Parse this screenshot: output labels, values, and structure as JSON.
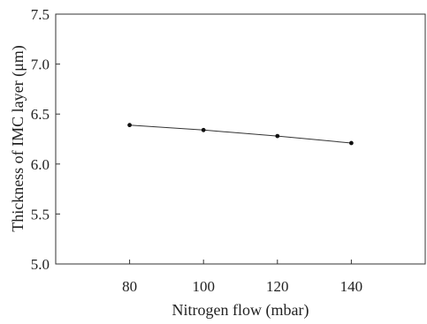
{
  "chart_data": {
    "type": "line",
    "xlabel": "Nitrogen flow (mbar)",
    "ylabel": "Thickness of IMC layer (μm)",
    "xlim": [
      60,
      160
    ],
    "ylim": [
      5.0,
      7.5
    ],
    "x_ticks": [
      80,
      100,
      120,
      140
    ],
    "y_ticks": [
      "5.0",
      "5.5",
      "6.0",
      "6.5",
      "7.0",
      "7.5"
    ],
    "grid": false,
    "series": [
      {
        "x": [
          80,
          100,
          120,
          140
        ],
        "y": [
          6.39,
          6.34,
          6.28,
          6.21
        ]
      }
    ],
    "colors": {
      "line": "#333333",
      "marker": "#111111",
      "axis": "#333333"
    }
  }
}
